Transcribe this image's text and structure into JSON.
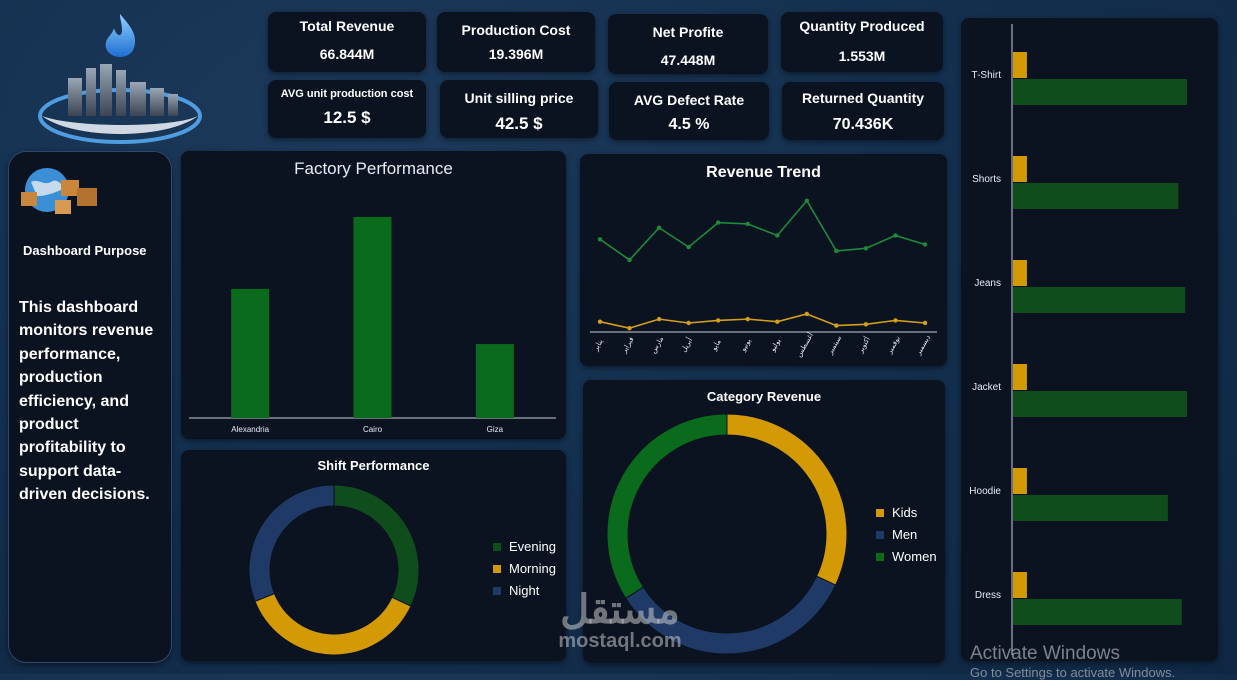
{
  "colors": {
    "green": "#0a6b1c",
    "dark_green": "#0f4d1c",
    "gold": "#d49a06",
    "navy": "#1f3a66",
    "line_green": "#1e8a3a",
    "line_gold": "#d4a017"
  },
  "kpis": {
    "total_revenue": {
      "label": "Total Revenue",
      "value": "66.844M"
    },
    "production_cost": {
      "label": "Production Cost",
      "value": "19.396M"
    },
    "net_profit": {
      "label": "Net Profite",
      "value": "47.448M"
    },
    "quantity_produced": {
      "label": "Quantity Produced",
      "value": "1.553M"
    },
    "avg_unit_cost": {
      "label": "AVG unit production cost",
      "value": "12.5 $"
    },
    "unit_price": {
      "label": "Unit silling price",
      "value": "42.5 $"
    },
    "avg_defect_rate": {
      "label": "AVG Defect Rate",
      "value": "4.5 %"
    },
    "returned_quantity": {
      "label": "Returned Quantity",
      "value": "70.436K"
    }
  },
  "sidebar": {
    "purpose_title": "Dashboard Purpose",
    "purpose_text": "This dashboard monitors revenue performance, production efficiency, and product profitability to support data-driven decisions."
  },
  "watermark": {
    "arabic": "مستقل",
    "latin": "mostaql.com"
  },
  "activate": {
    "line1": "Activate Windows",
    "line2": "Go to Settings to activate Windows."
  },
  "chart_data": [
    {
      "type": "bar",
      "title": "Factory Performance",
      "categories": [
        "Alexandria",
        "Cairo",
        "Giza"
      ],
      "values": [
        131,
        204,
        75
      ],
      "ylim": [
        0,
        210
      ]
    },
    {
      "type": "line",
      "title": "Revenue Trend",
      "x": [
        "يناير",
        "فبراير",
        "مارس",
        "أبريل",
        "مايو",
        "يونيو",
        "يوليو",
        "أغسطس",
        "سبتمبر",
        "أكتوبر",
        "نوفمبر",
        "ديسمبر"
      ],
      "series": [
        {
          "values": [
            72,
            56,
            81,
            66,
            85,
            84,
            75,
            102,
            63,
            65,
            75,
            68
          ]
        },
        {
          "values": [
            8,
            3,
            10,
            7,
            9,
            10,
            8,
            14,
            5,
            6,
            9,
            7
          ]
        }
      ],
      "ylim": [
        0,
        115
      ]
    },
    {
      "type": "pie",
      "title": "Shift Performance",
      "categories": [
        "Evening",
        "Morning",
        "Night"
      ],
      "values": [
        32,
        37,
        31
      ]
    },
    {
      "type": "pie",
      "title": "Category Revenue",
      "categories": [
        "Kids",
        "Men",
        "Women"
      ],
      "values": [
        32,
        34,
        34
      ]
    },
    {
      "type": "bar",
      "orientation": "horizontal",
      "categories": [
        "T-Shirt",
        "Shorts",
        "Jeans",
        "Jacket",
        "Hoodie",
        "Dress"
      ],
      "series": [
        {
          "values": [
            4,
            4,
            4,
            4,
            4,
            4
          ]
        },
        {
          "values": [
            100,
            95,
            99,
            100,
            89,
            97
          ]
        }
      ],
      "xlim": [
        0,
        100
      ]
    }
  ]
}
